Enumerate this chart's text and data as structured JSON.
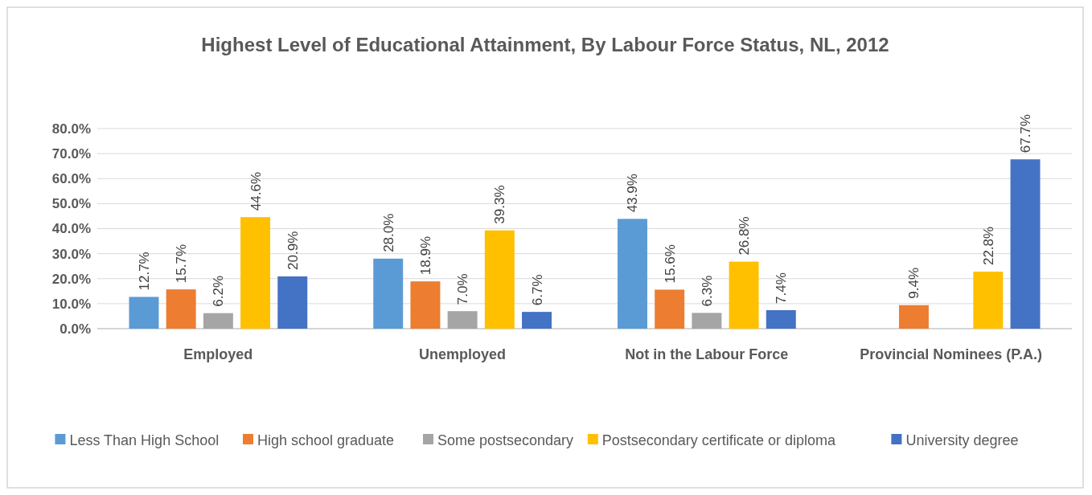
{
  "chart_data": {
    "type": "bar",
    "title": "Highest Level of Educational Attainment, By Labour Force Status, NL, 2012",
    "categories": [
      "Employed",
      "Unemployed",
      "Not in the Labour Force",
      "Provincial Nominees (P.A.)"
    ],
    "series": [
      {
        "name": "Less Than High School",
        "color": "#5b9bd5",
        "values": [
          12.7,
          28.0,
          43.9,
          null
        ],
        "value_labels": [
          "12.7%",
          "28.0%",
          "43.9%",
          null
        ]
      },
      {
        "name": "High school graduate",
        "color": "#ed7d31",
        "values": [
          15.7,
          18.9,
          15.6,
          9.4
        ],
        "value_labels": [
          "15.7%",
          "18.9%",
          "15.6%",
          "9.4%"
        ]
      },
      {
        "name": "Some postsecondary",
        "color": "#a5a5a5",
        "values": [
          6.2,
          7.0,
          6.3,
          null
        ],
        "value_labels": [
          "6.2%",
          "7.0%",
          "6.3%",
          null
        ]
      },
      {
        "name": "Postsecondary certificate or diploma",
        "color": "#ffc000",
        "values": [
          44.6,
          39.3,
          26.8,
          22.8
        ],
        "value_labels": [
          "44.6%",
          "39.3%",
          "26.8%",
          "22.8%"
        ]
      },
      {
        "name": "University degree",
        "color": "#4472c4",
        "values": [
          20.9,
          6.7,
          7.4,
          67.7
        ],
        "value_labels": [
          "20.9%",
          "6.7%",
          "7.4%",
          "67.7%"
        ]
      }
    ],
    "ylim": [
      0,
      80
    ],
    "yticks": [
      {
        "value": 0,
        "label": "0.0%"
      },
      {
        "value": 10,
        "label": "10.0%"
      },
      {
        "value": 20,
        "label": "20.0%"
      },
      {
        "value": 30,
        "label": "30.0%"
      },
      {
        "value": 40,
        "label": "40.0%"
      },
      {
        "value": 50,
        "label": "50.0%"
      },
      {
        "value": 60,
        "label": "60.0%"
      },
      {
        "value": 70,
        "label": "70.0%"
      },
      {
        "value": 80,
        "label": "80.0%"
      }
    ],
    "grid": "y",
    "legend": "bottom"
  }
}
